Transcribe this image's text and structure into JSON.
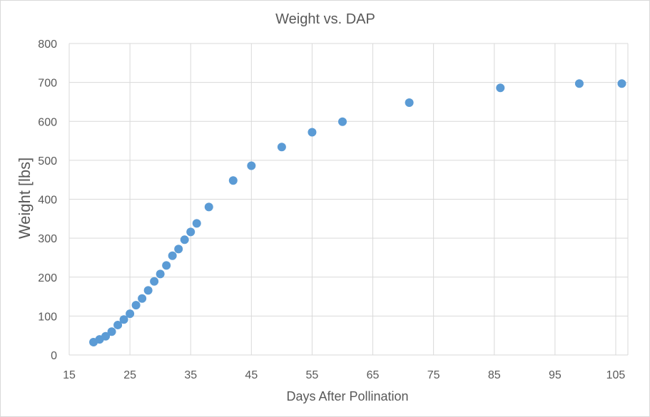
{
  "chart_data": {
    "type": "scatter",
    "title": "Weight vs. DAP",
    "xlabel": "Days After Pollination",
    "ylabel": "Weight [lbs]",
    "xlim": [
      15,
      107
    ],
    "ylim": [
      0,
      800
    ],
    "xticks": [
      15,
      25,
      35,
      45,
      55,
      65,
      75,
      85,
      95,
      105
    ],
    "yticks": [
      0,
      100,
      200,
      300,
      400,
      500,
      600,
      700,
      800
    ],
    "grid": true,
    "series": [
      {
        "name": "Weight",
        "color": "#5b9bd5",
        "points": [
          [
            19,
            33
          ],
          [
            20,
            40
          ],
          [
            21,
            48
          ],
          [
            22,
            60
          ],
          [
            23,
            77
          ],
          [
            24,
            91
          ],
          [
            25,
            106
          ],
          [
            26,
            128
          ],
          [
            27,
            145
          ],
          [
            28,
            166
          ],
          [
            29,
            189
          ],
          [
            30,
            208
          ],
          [
            31,
            230
          ],
          [
            32,
            255
          ],
          [
            33,
            272
          ],
          [
            34,
            296
          ],
          [
            35,
            316
          ],
          [
            36,
            338
          ],
          [
            38,
            380
          ],
          [
            42,
            448
          ],
          [
            45,
            486
          ],
          [
            50,
            534
          ],
          [
            55,
            572
          ],
          [
            60,
            599
          ],
          [
            71,
            648
          ],
          [
            86,
            686
          ],
          [
            99,
            697
          ],
          [
            106,
            697
          ]
        ]
      }
    ]
  },
  "colors": {
    "grid": "#d9d9d9",
    "text": "#595959",
    "marker": "#5b9bd5"
  }
}
